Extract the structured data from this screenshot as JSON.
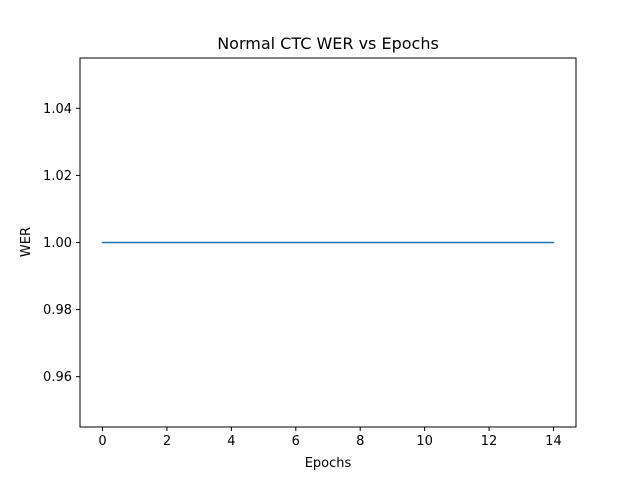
{
  "chart_data": {
    "type": "line",
    "title": "Normal CTC WER vs Epochs",
    "xlabel": "Epochs",
    "ylabel": "WER",
    "xlim": [
      -0.7,
      14.7
    ],
    "ylim": [
      0.945,
      1.055
    ],
    "x_ticks": [
      0,
      2,
      4,
      6,
      8,
      10,
      12,
      14
    ],
    "x_tick_labels": [
      "0",
      "2",
      "4",
      "6",
      "8",
      "10",
      "12",
      "14"
    ],
    "y_ticks": [
      0.96,
      0.98,
      1.0,
      1.02,
      1.04
    ],
    "y_tick_labels": [
      "0.96",
      "0.98",
      "1.00",
      "1.02",
      "1.04"
    ],
    "grid": false,
    "series": [
      {
        "color": "#1f77b4",
        "x": [
          0,
          1,
          2,
          3,
          4,
          5,
          6,
          7,
          8,
          9,
          10,
          11,
          12,
          13,
          14
        ],
        "y": [
          1,
          1,
          1,
          1,
          1,
          1,
          1,
          1,
          1,
          1,
          1,
          1,
          1,
          1,
          1
        ]
      }
    ]
  }
}
